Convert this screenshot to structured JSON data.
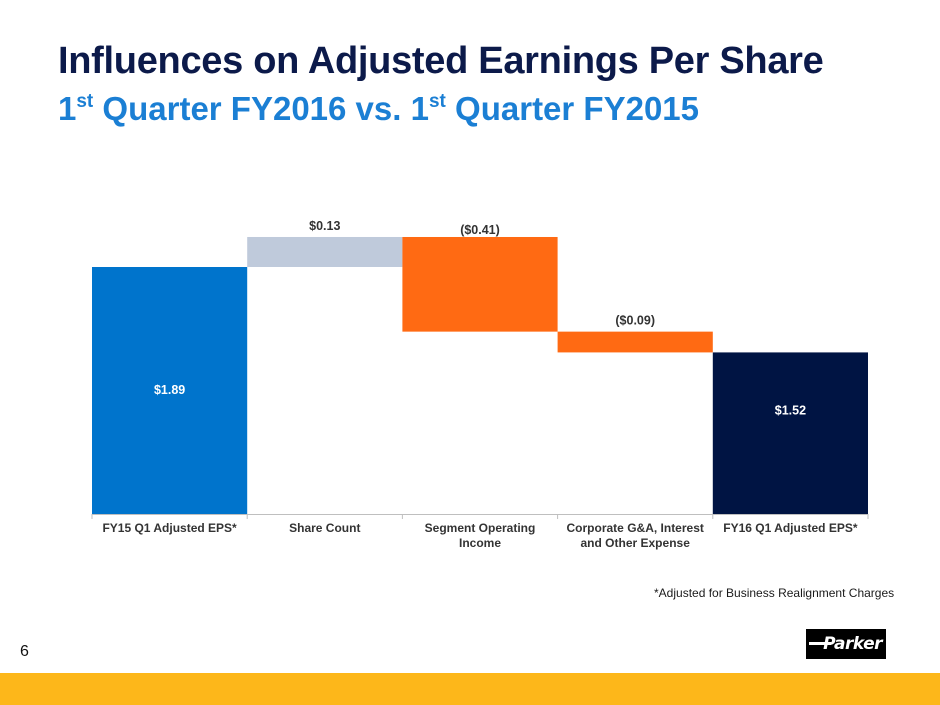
{
  "header": {
    "title": "Influences on Adjusted Earnings Per Share",
    "subtitle_parts": [
      {
        "text": "1",
        "sup": false
      },
      {
        "text": "st",
        "sup": true
      },
      {
        "text": " Quarter FY2016 vs. 1",
        "sup": false
      },
      {
        "text": "st",
        "sup": true
      },
      {
        "text": " Quarter FY2015",
        "sup": false
      }
    ]
  },
  "chart_data": {
    "type": "bar",
    "subtype": "waterfall",
    "title": "",
    "xlabel": "",
    "ylabel": "",
    "ylim": [
      0.82,
      2.2
    ],
    "grid": false,
    "categories": [
      "FY15 Q1 Adjusted EPS*",
      "Share Count",
      "Segment Operating Income",
      "Corporate G&A, Interest and Other Expense",
      "FY16 Q1 Adjusted EPS*"
    ],
    "category_lines": [
      [
        "FY15 Q1 Adjusted EPS*"
      ],
      [
        "Share Count"
      ],
      [
        "Segment Operating",
        "Income"
      ],
      [
        "Corporate G&A, Interest",
        "and Other Expense"
      ],
      [
        "FY16 Q1 Adjusted EPS*"
      ]
    ],
    "values": [
      1.89,
      0.13,
      -0.41,
      -0.09,
      1.52
    ],
    "kinds": [
      "total",
      "delta",
      "delta",
      "delta",
      "total"
    ],
    "data_labels": [
      "$1.89",
      "$0.13",
      "($0.41)",
      "($0.09)",
      "$1.52"
    ],
    "colors": [
      "#0074cc",
      "#bfcadb",
      "#ff6a13",
      "#ff6a13",
      "#001443"
    ],
    "label_colors": [
      "#ffffff",
      "#333333",
      "#333333",
      "#333333",
      "#ffffff"
    ]
  },
  "footnote": "*Adjusted for Business Realignment Charges",
  "page_number": "6",
  "logo_text": "Parker",
  "colors": {
    "title": "#0c1a4a",
    "subtitle": "#1b7fd4",
    "footer_bar": "#fdb71a"
  }
}
